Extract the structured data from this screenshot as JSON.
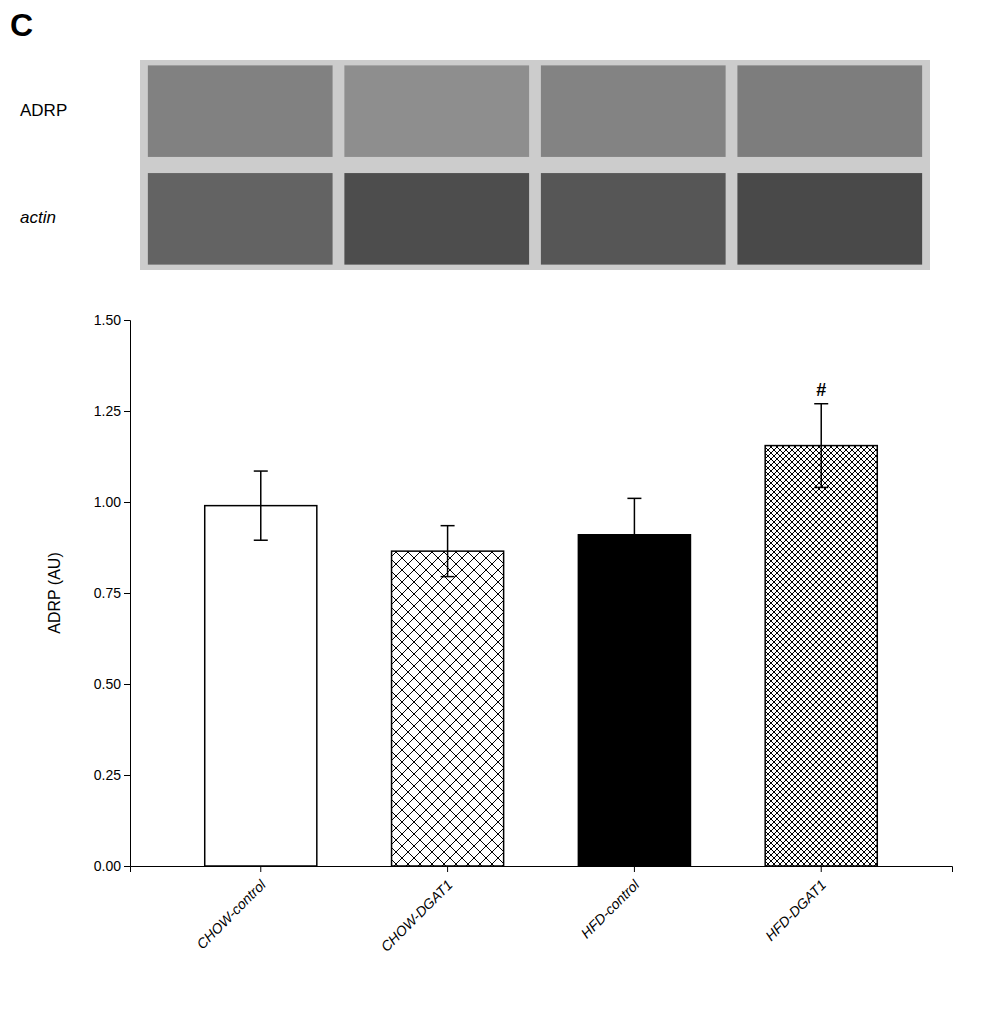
{
  "chart_data": [
    {
      "type": "heatmap",
      "categories": [
        null,
        null,
        null,
        null
      ],
      "series": [
        {
          "name": "ADRP",
          "values": [
            0.58,
            0.52,
            0.57,
            0.6
          ]
        },
        {
          "name": "actin",
          "values": [
            0.72,
            0.82,
            0.78,
            0.84
          ]
        }
      ],
      "annotations": [
        {
          "text": "C"
        }
      ]
    },
    {
      "type": "bar",
      "categories": [
        "CHOW-control",
        "CHOW-DGAT1",
        "HFD-control",
        "HFD-DGAT1"
      ],
      "values": [
        0.99,
        0.865,
        0.91,
        1.155
      ],
      "errors": [
        0.095,
        0.07,
        0.1,
        0.115
      ],
      "colors": [
        "white",
        "none",
        "black",
        "none"
      ],
      "ylabel": "ADRP (AU)",
      "ylim": [
        0,
        1.5
      ],
      "yticks": [
        {
          "value": 0,
          "label": "0.00"
        },
        0.25,
        {
          "value": 0.5,
          "label": "0.50"
        },
        0.75,
        {
          "value": 1,
          "label": "1.00"
        },
        1.25,
        {
          "value": 1.5,
          "label": "1.50"
        }
      ],
      "grid": false,
      "annotations": [
        {
          "text": "#",
          "category": "HFD-DGAT1"
        }
      ]
    }
  ]
}
